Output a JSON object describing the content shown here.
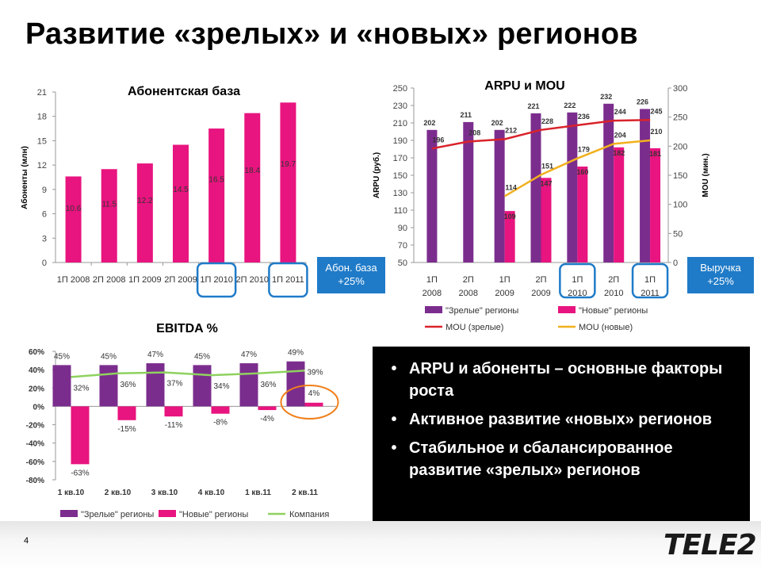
{
  "slide": {
    "title": "Развитие «зрелых» и «новых» регионов",
    "page_number": "4",
    "logo_text": "TELE2"
  },
  "callouts": {
    "subs": [
      "Абон. база",
      "+25%"
    ],
    "revenue": [
      "Выручка",
      "+25%"
    ]
  },
  "bullets": [
    "ARPU и абоненты – основные факторы роста",
    "Активное развитие «новых» регионов",
    "Стабильное и сбалансированное развитие «зрелых» регионов"
  ],
  "colors": {
    "magenta": "#e8147f",
    "purple": "#7b2d8e",
    "red": "#d9232b",
    "orange": "#f2b01e",
    "green": "#8fd15f",
    "blue": "#1f7bc8",
    "circle_orange": "#f07f1b"
  },
  "chart_data": [
    {
      "id": "subs",
      "type": "bar",
      "title": "Абонентская база",
      "ylabel": "Абоненты (млн)",
      "categories": [
        "1П 2008",
        "2П 2008",
        "1П 2009",
        "2П 2009",
        "1П 2010",
        "2П 2010",
        "1П 2011"
      ],
      "values": [
        10.6,
        11.5,
        12.2,
        14.5,
        16.5,
        18.4,
        19.7
      ],
      "value_labels": [
        "10.6",
        "11.5",
        "12.2",
        "14.5",
        "16.5",
        "18.4",
        "19.7"
      ],
      "ylim": [
        0,
        21
      ],
      "yticks": [
        "0",
        "3",
        "6",
        "9",
        "12",
        "15",
        "18",
        "21"
      ],
      "highlighted_categories": [
        4,
        6
      ]
    },
    {
      "id": "arpu",
      "type": "bar",
      "title": "ARPU и MOU",
      "ylabel": "ARPU (руб.)",
      "y2label": "MOU (мин.)",
      "categories": [
        [
          "1П",
          "2008"
        ],
        [
          "2П",
          "2008"
        ],
        [
          "1П",
          "2009"
        ],
        [
          "2П",
          "2009"
        ],
        [
          "1П",
          "2010"
        ],
        [
          "2П",
          "2010"
        ],
        [
          "1П",
          "2011"
        ]
      ],
      "ylim": [
        50,
        250
      ],
      "yticks": [
        "50",
        "70",
        "90",
        "110",
        "130",
        "150",
        "170",
        "190",
        "210",
        "230",
        "250"
      ],
      "y2lim": [
        0,
        300
      ],
      "y2ticks": [
        "0",
        "50",
        "100",
        "150",
        "200",
        "250",
        "300"
      ],
      "series": [
        {
          "name": "\"Зрелые\" регионы",
          "type": "bar",
          "values": [
            202,
            211,
            202,
            221,
            222,
            232,
            226
          ],
          "labels": [
            "202",
            "211",
            "202",
            "221",
            "222",
            "232",
            "226"
          ]
        },
        {
          "name": "\"Новые\" регионы",
          "type": "bar",
          "values": [
            null,
            null,
            109,
            147,
            160,
            182,
            181
          ],
          "labels": [
            "",
            "",
            "109",
            "147",
            "160",
            "182",
            "181"
          ]
        },
        {
          "name": "MOU (зрелые)",
          "type": "line",
          "axis": "right",
          "values": [
            196,
            208,
            212,
            228,
            236,
            244,
            245
          ],
          "labels": [
            "196",
            "208",
            "212",
            "228",
            "236",
            "244",
            "245"
          ]
        },
        {
          "name": "MOU (новые)",
          "type": "line",
          "axis": "right",
          "values": [
            null,
            null,
            114,
            151,
            179,
            204,
            210
          ],
          "labels": [
            "",
            "",
            "114",
            "151",
            "179",
            "204",
            "210"
          ]
        }
      ],
      "highlighted_categories": [
        4,
        6
      ]
    },
    {
      "id": "ebitda",
      "type": "bar",
      "title": "EBITDA %",
      "categories": [
        "1 кв.10",
        "2 кв.10",
        "3 кв.10",
        "4 кв.10",
        "1 кв.11",
        "2 кв.11"
      ],
      "ylim": [
        -80,
        60
      ],
      "yticks": [
        "60%",
        "40%",
        "20%",
        "0%",
        "-20%",
        "-40%",
        "-60%",
        "-80%"
      ],
      "series": [
        {
          "name": "\"Зрелые\" регионы",
          "type": "bar",
          "values": [
            45,
            45,
            47,
            45,
            47,
            49
          ],
          "labels": [
            "45%",
            "45%",
            "47%",
            "45%",
            "47%",
            "49%"
          ]
        },
        {
          "name": "\"Новые\" регионы",
          "type": "bar",
          "values": [
            -63,
            -15,
            -11,
            -8,
            -4,
            4
          ],
          "labels": [
            "-63%",
            "-15%",
            "-11%",
            "-8%",
            "-4%",
            "4%"
          ]
        },
        {
          "name": "Компания",
          "type": "line",
          "values": [
            32,
            36,
            37,
            34,
            36,
            39
          ],
          "labels": [
            "32%",
            "36%",
            "37%",
            "34%",
            "36%",
            "39%"
          ]
        }
      ],
      "highlighted_categories": [
        5
      ]
    }
  ]
}
